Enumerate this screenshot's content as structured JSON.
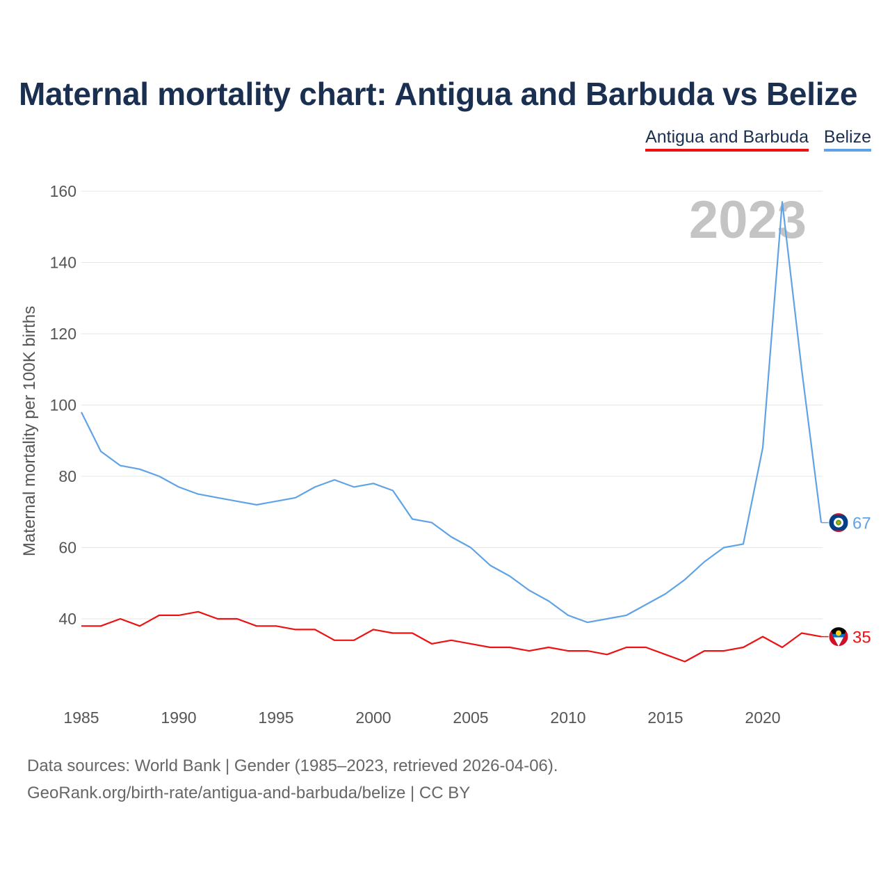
{
  "title": "Maternal mortality chart: Antigua and Barbuda vs Belize",
  "year_watermark": "2023",
  "footer": {
    "source": "Data sources: World Bank | Gender (1985–2023, retrieved 2026-04-06).",
    "credit": "GeoRank.org/birth-rate/antigua-and-barbuda/belize | CC BY"
  },
  "chart_data": {
    "type": "line",
    "title": "Maternal mortality chart: Antigua and Barbuda vs Belize",
    "xlabel": "",
    "ylabel": "Maternal mortality per 100K births",
    "xlim": [
      1985,
      2023
    ],
    "ylim": [
      20,
      165
    ],
    "yticks": [
      40,
      60,
      80,
      100,
      120,
      140,
      160
    ],
    "xticks": [
      1985,
      1990,
      1995,
      2000,
      2005,
      2010,
      2015,
      2020
    ],
    "grid": true,
    "legend": "top-right",
    "x": [
      1985,
      1986,
      1987,
      1988,
      1989,
      1990,
      1991,
      1992,
      1993,
      1994,
      1995,
      1996,
      1997,
      1998,
      1999,
      2000,
      2001,
      2002,
      2003,
      2004,
      2005,
      2006,
      2007,
      2008,
      2009,
      2010,
      2011,
      2012,
      2013,
      2014,
      2015,
      2016,
      2017,
      2018,
      2019,
      2020,
      2021,
      2022,
      2023
    ],
    "series": [
      {
        "name": "Antigua and Barbuda",
        "color": "#ee1111",
        "end_label": "35",
        "flag_icon": "antigua-flag-icon",
        "values": [
          38,
          38,
          40,
          38,
          41,
          41,
          42,
          40,
          40,
          38,
          38,
          37,
          37,
          34,
          34,
          37,
          36,
          36,
          33,
          34,
          33,
          32,
          32,
          31,
          32,
          31,
          31,
          30,
          32,
          32,
          30,
          28,
          31,
          31,
          32,
          35,
          32,
          36,
          35
        ]
      },
      {
        "name": "Belize",
        "color": "#5fa3e6",
        "end_label": "67",
        "flag_icon": "belize-flag-icon",
        "values": [
          98,
          87,
          83,
          82,
          80,
          77,
          75,
          74,
          73,
          72,
          73,
          74,
          77,
          79,
          77,
          78,
          76,
          68,
          67,
          63,
          60,
          55,
          52,
          48,
          45,
          41,
          39,
          40,
          41,
          44,
          47,
          51,
          56,
          60,
          61,
          88,
          157,
          110,
          67
        ]
      }
    ]
  }
}
